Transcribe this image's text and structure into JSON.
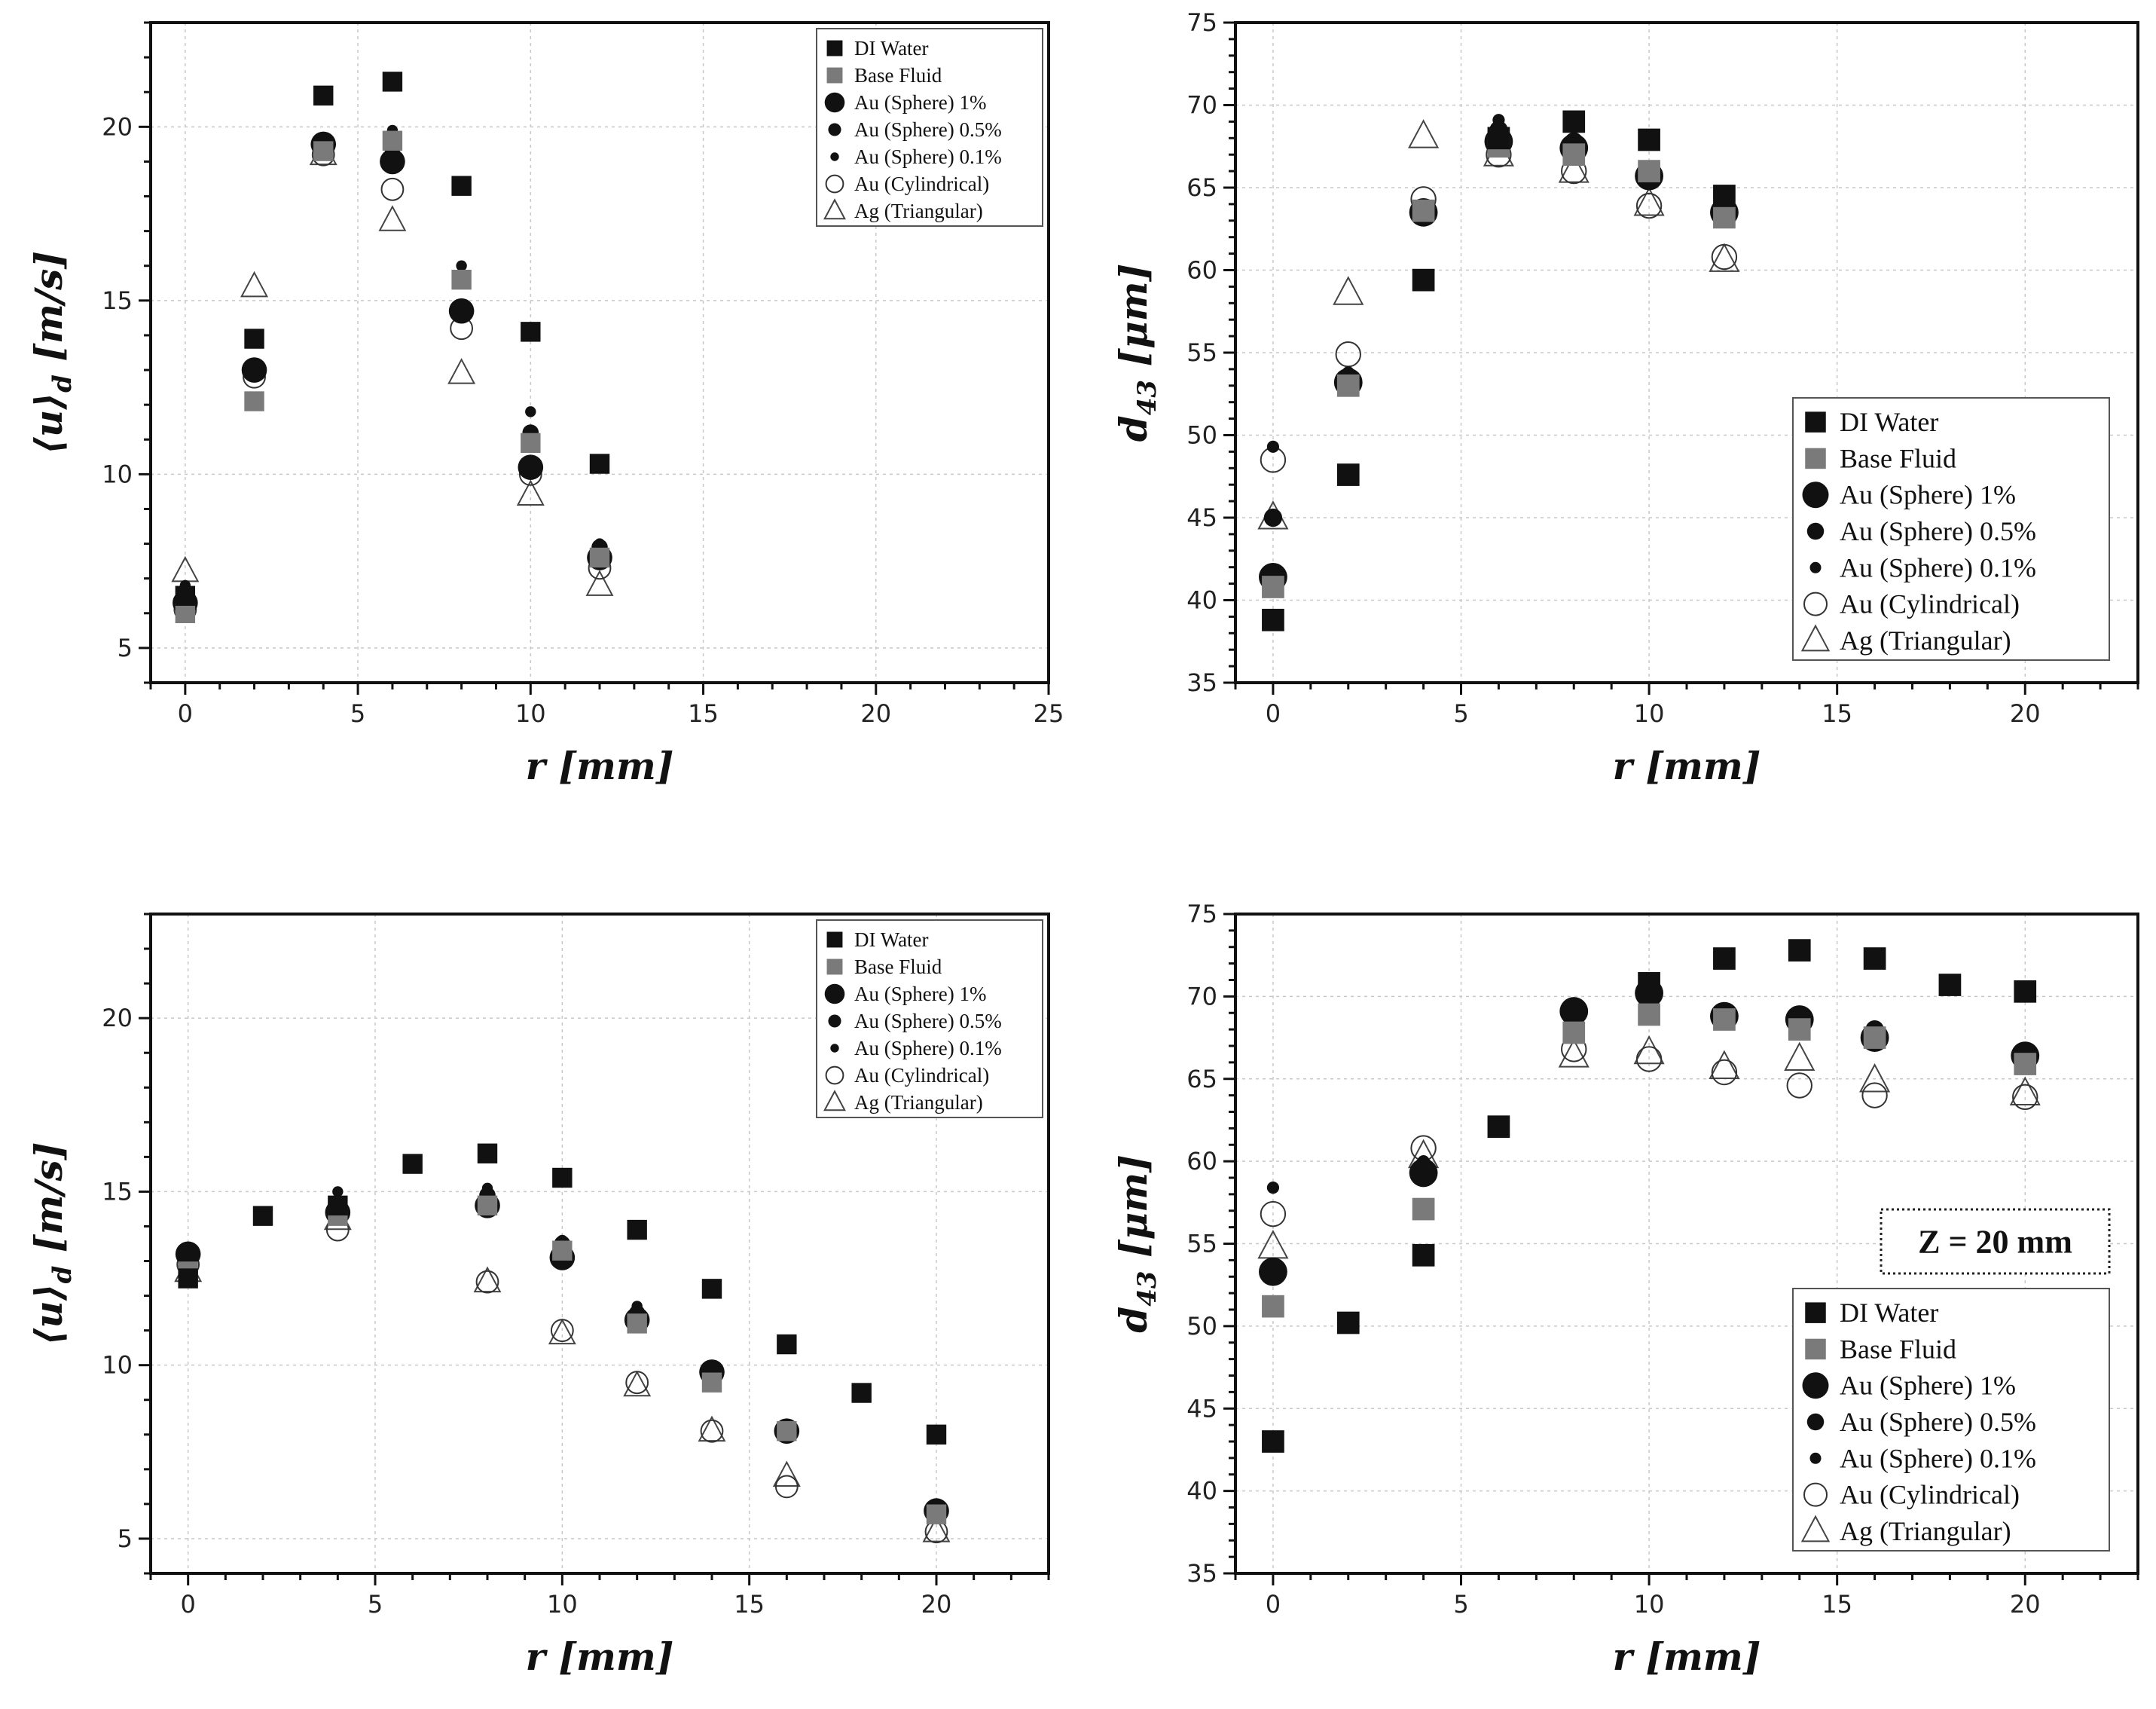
{
  "legend_labels": [
    "DI Water",
    "Base Fluid",
    "Au (Sphere) 1%",
    "Au (Sphere) 0.5%",
    "Au (Sphere) 0.1%",
    "Au (Cylindrical)",
    "Ag (Triangular)"
  ],
  "colors": {
    "black": "#111111",
    "gray": "#7a7a7a",
    "grid": "#c8c8c8"
  },
  "chart_data": [
    {
      "type": "scatter",
      "panel": "top-left",
      "xlabel": "r [mm]",
      "ylabel": "⟨u⟩d [m/s]",
      "ylabel_main": "⟨u⟩",
      "ylabel_sub": "d",
      "ylabel_units": " [m/s]",
      "xlim": [
        -1,
        25
      ],
      "ylim": [
        4,
        23
      ],
      "xticks": [
        0,
        5,
        10,
        15,
        20,
        25
      ],
      "yticks": [
        5,
        10,
        15,
        20
      ],
      "grid": true,
      "legend_position": "top-right",
      "series": [
        {
          "name": "DI Water",
          "x": [
            0,
            2,
            4,
            6,
            8,
            10,
            12
          ],
          "y": [
            6.5,
            13.9,
            20.9,
            21.3,
            18.3,
            14.1,
            10.3
          ]
        },
        {
          "name": "Base Fluid",
          "x": [
            0,
            2,
            4,
            6,
            8,
            10,
            12
          ],
          "y": [
            6.0,
            12.1,
            19.3,
            19.6,
            15.6,
            10.9,
            7.6
          ]
        },
        {
          "name": "Au (Sphere) 1%",
          "x": [
            0,
            2,
            4,
            6,
            8,
            10,
            12
          ],
          "y": [
            6.3,
            13.0,
            19.5,
            19.0,
            14.7,
            10.2,
            7.6
          ]
        },
        {
          "name": "Au (Sphere) 0.5%",
          "x": [
            0,
            2,
            4,
            6,
            8,
            10,
            12
          ],
          "y": [
            6.6,
            12.9,
            19.6,
            19.4,
            15.6,
            11.2,
            7.9
          ]
        },
        {
          "name": "Au (Sphere) 0.1%",
          "x": [
            0,
            2,
            4,
            6,
            8,
            10,
            12
          ],
          "y": [
            6.8,
            13.1,
            19.7,
            19.9,
            16.0,
            11.8,
            8.0
          ]
        },
        {
          "name": "Au (Cylindrical)",
          "x": [
            0,
            2,
            4,
            6,
            8,
            10,
            12
          ],
          "y": [
            6.1,
            12.8,
            19.2,
            18.2,
            14.2,
            10.0,
            7.3
          ]
        },
        {
          "name": "Ag (Triangular)",
          "x": [
            0,
            2,
            4,
            6,
            8,
            10,
            12
          ],
          "y": [
            7.2,
            15.4,
            19.2,
            17.3,
            12.9,
            9.4,
            6.8
          ]
        }
      ]
    },
    {
      "type": "scatter",
      "panel": "top-right",
      "xlabel": "r [mm]",
      "ylabel": "d43 [μm]",
      "ylabel_main": "d",
      "ylabel_sub": "43",
      "ylabel_units": " [μm]",
      "xlim": [
        -1,
        23
      ],
      "ylim": [
        35,
        75
      ],
      "xticks": [
        0,
        5,
        10,
        15,
        20
      ],
      "yticks": [
        35,
        40,
        45,
        50,
        55,
        60,
        65,
        70,
        75
      ],
      "grid": true,
      "legend_position": "bottom-right",
      "series": [
        {
          "name": "DI Water",
          "x": [
            0,
            2,
            4,
            6,
            8,
            10,
            12
          ],
          "y": [
            38.8,
            47.6,
            59.4,
            68.0,
            69.0,
            67.9,
            64.5
          ]
        },
        {
          "name": "Base Fluid",
          "x": [
            0,
            2,
            4,
            6,
            8,
            10,
            12
          ],
          "y": [
            40.8,
            53.0,
            63.6,
            67.5,
            67.0,
            66.0,
            63.2
          ]
        },
        {
          "name": "Au (Sphere) 1%",
          "x": [
            0,
            2,
            4,
            6,
            8,
            10,
            12
          ],
          "y": [
            41.4,
            53.2,
            63.5,
            67.8,
            67.4,
            65.7,
            63.5
          ]
        },
        {
          "name": "Au (Sphere) 0.5%",
          "x": [
            0,
            2,
            4,
            6,
            8,
            10,
            12
          ],
          "y": [
            45.0,
            53.5,
            63.6,
            68.5,
            67.8,
            66.0,
            63.8
          ]
        },
        {
          "name": "Au (Sphere) 0.1%",
          "x": [
            0,
            2,
            4,
            6,
            8,
            10,
            12
          ],
          "y": [
            49.3,
            53.8,
            63.8,
            69.1,
            68.0,
            66.2,
            64.0
          ]
        },
        {
          "name": "Au (Cylindrical)",
          "x": [
            0,
            2,
            4,
            6,
            8,
            10,
            12
          ],
          "y": [
            48.5,
            54.9,
            64.3,
            67.0,
            66.0,
            63.9,
            60.8
          ]
        },
        {
          "name": "Ag (Triangular)",
          "x": [
            0,
            2,
            4,
            6,
            8,
            10,
            12
          ],
          "y": [
            45.0,
            58.6,
            68.1,
            67.0,
            66.0,
            64.0,
            60.6
          ]
        }
      ]
    },
    {
      "type": "scatter",
      "panel": "bottom-left",
      "xlabel": "r [mm]",
      "ylabel": "⟨u⟩d [m/s]",
      "ylabel_main": "⟨u⟩",
      "ylabel_sub": "d",
      "ylabel_units": " [m/s]",
      "xlim": [
        -1,
        23
      ],
      "ylim": [
        4,
        23
      ],
      "xticks": [
        0,
        5,
        10,
        15,
        20
      ],
      "yticks": [
        5,
        10,
        15,
        20
      ],
      "grid": true,
      "legend_position": "top-right",
      "series": [
        {
          "name": "DI Water",
          "x": [
            0,
            2,
            4,
            6,
            8,
            10,
            12,
            14,
            16,
            18,
            20
          ],
          "y": [
            12.5,
            14.3,
            14.6,
            15.8,
            16.1,
            15.4,
            13.9,
            12.2,
            10.6,
            9.2,
            8.0
          ]
        },
        {
          "name": "Base Fluid",
          "x": [
            0,
            4,
            8,
            10,
            12,
            14,
            16,
            20
          ],
          "y": [
            12.7,
            14.3,
            14.6,
            13.3,
            11.2,
            9.5,
            8.1,
            5.7
          ]
        },
        {
          "name": "Au (Sphere) 1%",
          "x": [
            0,
            4,
            8,
            10,
            12,
            14,
            16,
            20
          ],
          "y": [
            13.2,
            14.4,
            14.6,
            13.1,
            11.3,
            9.8,
            8.1,
            5.8
          ]
        },
        {
          "name": "Au (Sphere) 0.5%",
          "x": [
            0,
            4,
            8,
            10,
            12,
            14,
            16,
            20
          ],
          "y": [
            13.3,
            14.6,
            14.9,
            13.5,
            11.5,
            9.8,
            8.2,
            5.9
          ]
        },
        {
          "name": "Au (Sphere) 0.1%",
          "x": [
            0,
            4,
            8,
            10,
            12,
            14,
            16,
            20
          ],
          "y": [
            13.4,
            15.0,
            15.1,
            13.6,
            11.7,
            9.9,
            8.3,
            6.0
          ]
        },
        {
          "name": "Au (Cylindrical)",
          "x": [
            0,
            4,
            8,
            10,
            12,
            14,
            16,
            20
          ],
          "y": [
            12.9,
            13.9,
            12.4,
            11.0,
            9.5,
            8.1,
            6.5,
            5.2
          ]
        },
        {
          "name": "Ag (Triangular)",
          "x": [
            0,
            4,
            8,
            10,
            12,
            14,
            16,
            20
          ],
          "y": [
            12.7,
            14.2,
            12.4,
            10.9,
            9.4,
            8.1,
            6.8,
            5.2
          ]
        }
      ]
    },
    {
      "type": "scatter",
      "panel": "bottom-right",
      "xlabel": "r [mm]",
      "ylabel": "d43 [μm]",
      "ylabel_main": "d",
      "ylabel_sub": "43",
      "ylabel_units": " [μm]",
      "xlim": [
        -1,
        23
      ],
      "ylim": [
        35,
        75
      ],
      "xticks": [
        0,
        5,
        10,
        15,
        20
      ],
      "yticks": [
        35,
        40,
        45,
        50,
        55,
        60,
        65,
        70,
        75
      ],
      "grid": true,
      "legend_position": "bottom-right",
      "annotation": "Z = 20 mm",
      "series": [
        {
          "name": "DI Water",
          "x": [
            0,
            2,
            4,
            6,
            10,
            12,
            14,
            16,
            18,
            20
          ],
          "y": [
            43.0,
            50.2,
            54.3,
            62.1,
            70.8,
            72.3,
            72.8,
            72.3,
            70.7,
            70.3
          ]
        },
        {
          "name": "Base Fluid",
          "x": [
            0,
            4,
            8,
            10,
            12,
            14,
            16,
            20
          ],
          "y": [
            51.2,
            57.1,
            67.8,
            68.9,
            68.6,
            68.0,
            67.5,
            65.9
          ]
        },
        {
          "name": "Au (Sphere) 1%",
          "x": [
            0,
            4,
            8,
            10,
            12,
            14,
            16,
            20
          ],
          "y": [
            53.3,
            59.3,
            69.1,
            70.2,
            68.8,
            68.6,
            67.5,
            66.4
          ]
        },
        {
          "name": "Au (Sphere) 0.5%",
          "x": [
            0,
            4,
            8,
            10,
            12,
            14,
            16,
            20
          ],
          "y": [
            51.2,
            59.7,
            68.4,
            70.0,
            69.0,
            68.5,
            68.0,
            66.6
          ]
        },
        {
          "name": "Au (Sphere) 0.1%",
          "x": [
            0,
            4,
            8,
            10,
            12,
            14,
            16,
            20
          ],
          "y": [
            58.4,
            60.0,
            68.0,
            69.5,
            69.1,
            68.6,
            68.1,
            66.8
          ]
        },
        {
          "name": "Au (Cylindrical)",
          "x": [
            0,
            4,
            8,
            10,
            12,
            14,
            16,
            20
          ],
          "y": [
            56.8,
            60.8,
            66.8,
            66.2,
            65.4,
            64.6,
            64.0,
            63.9
          ]
        },
        {
          "name": "Ag (Triangular)",
          "x": [
            0,
            4,
            8,
            10,
            12,
            14,
            16,
            20
          ],
          "y": [
            54.8,
            60.3,
            66.4,
            66.6,
            65.7,
            66.2,
            64.9,
            64.1
          ]
        }
      ]
    }
  ]
}
